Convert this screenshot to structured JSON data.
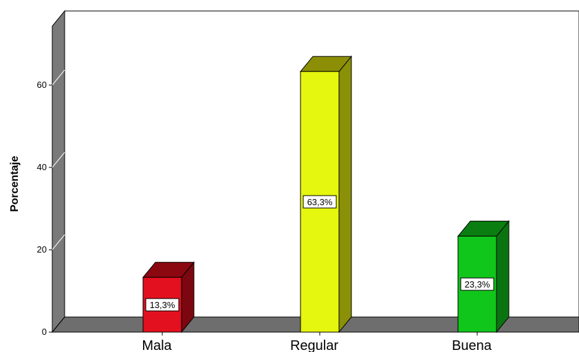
{
  "chart_data": {
    "type": "bar",
    "style": "3d",
    "categories": [
      "Mala",
      "Regular",
      "Buena"
    ],
    "values": [
      13.3,
      63.3,
      23.3
    ],
    "data_labels": [
      "13,3%",
      "63,3%",
      "23,3%"
    ],
    "ylabel": "Porcentaje",
    "xlabel": "",
    "ylim": [
      0,
      75
    ],
    "yticks": [
      0,
      20,
      40,
      60
    ],
    "grid": true,
    "colors": {
      "bars": [
        "#e3101f",
        "#e5f60f",
        "#11c61b"
      ],
      "bar_tops": [
        "#8b0810",
        "#8c8f06",
        "#0a7e10"
      ],
      "bar_sides": [
        "#7c0710",
        "#8a9007",
        "#0a7510"
      ],
      "wall": "#7a7a7a",
      "floor": "#6e6e6e"
    }
  }
}
